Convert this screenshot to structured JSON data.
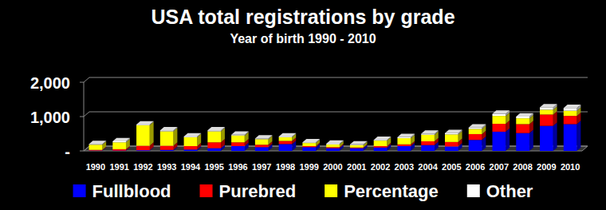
{
  "chart_data": {
    "type": "bar",
    "title": "USA total registrations by grade",
    "subtitle": "Year of birth 1990 - 2010",
    "categories": [
      "1990",
      "1991",
      "1992",
      "1993",
      "1994",
      "1995",
      "1996",
      "1997",
      "1998",
      "1999",
      "2000",
      "2001",
      "2002",
      "2003",
      "2004",
      "2005",
      "2006",
      "2007",
      "2008",
      "2009",
      "2010"
    ],
    "series": [
      {
        "name": "Fullblood",
        "color": "#0000ff",
        "values": [
          10,
          10,
          20,
          30,
          40,
          80,
          140,
          110,
          200,
          110,
          80,
          80,
          100,
          140,
          170,
          130,
          320,
          560,
          520,
          730,
          780
        ]
      },
      {
        "name": "Purebred",
        "color": "#ff0000",
        "values": [
          20,
          40,
          130,
          120,
          100,
          170,
          110,
          70,
          90,
          30,
          30,
          20,
          40,
          50,
          110,
          130,
          170,
          230,
          260,
          330,
          240
        ]
      },
      {
        "name": "Percentage",
        "color": "#ffff00",
        "values": [
          150,
          200,
          600,
          420,
          260,
          320,
          200,
          160,
          110,
          90,
          80,
          70,
          160,
          180,
          190,
          220,
          150,
          230,
          170,
          140,
          150
        ]
      },
      {
        "name": "Other",
        "color": "#ffffff",
        "values": [
          20,
          30,
          20,
          30,
          20,
          30,
          20,
          20,
          20,
          20,
          20,
          20,
          20,
          30,
          30,
          40,
          40,
          60,
          50,
          70,
          80
        ]
      }
    ],
    "ylim": [
      0,
      2000
    ],
    "yticks": [
      {
        "value": 0,
        "label": "-"
      },
      {
        "value": 1000,
        "label": "1,000"
      },
      {
        "value": 2000,
        "label": "2,000"
      }
    ],
    "grid": true,
    "stacked": true,
    "legend": "bottom"
  }
}
